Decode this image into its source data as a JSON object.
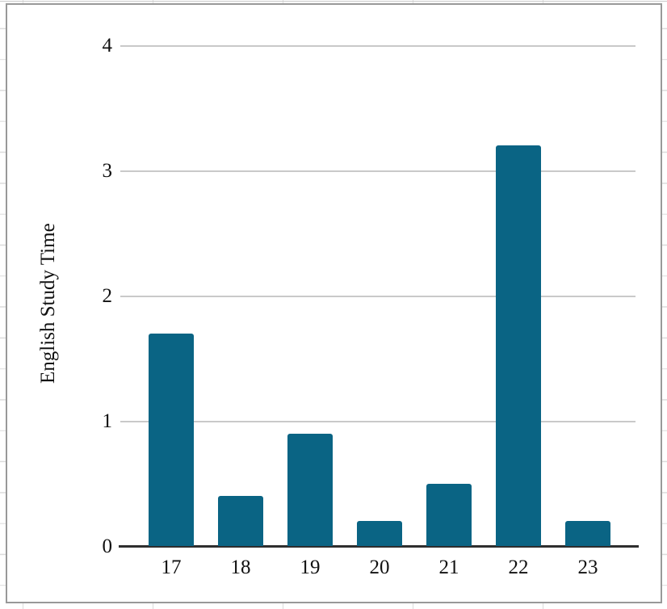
{
  "chart_data": {
    "type": "bar",
    "categories": [
      "17",
      "18",
      "19",
      "20",
      "21",
      "22",
      "23"
    ],
    "values": [
      1.7,
      0.4,
      0.9,
      0.2,
      0.5,
      3.2,
      0.2
    ],
    "title": "",
    "xlabel": "",
    "ylabel": "English Study Time",
    "ylim": [
      0,
      4
    ],
    "yticks": [
      0,
      1,
      2,
      3,
      4
    ],
    "grid": true,
    "legend": false
  },
  "colors": {
    "bar": "#0a6484",
    "gridline": "#c9c9c9",
    "axis": "#2e2e2e",
    "chart_border": "#999999",
    "sheet_gridline": "#dcdcdc",
    "text": "#111111"
  }
}
